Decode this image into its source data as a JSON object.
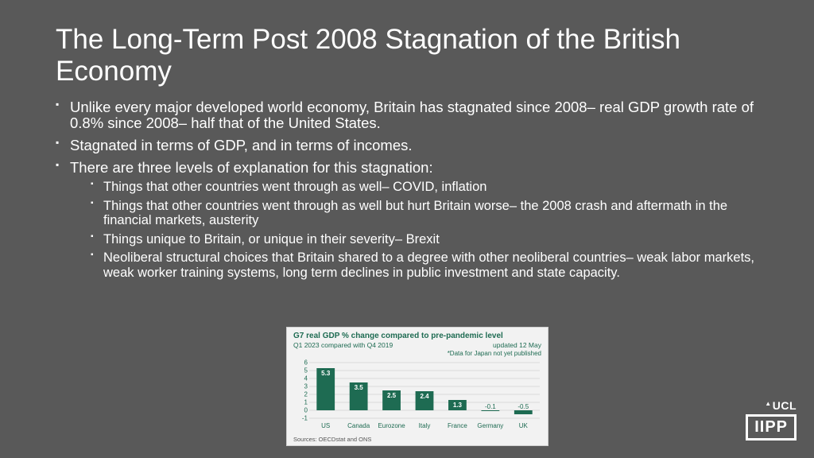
{
  "title": "The Long-Term Post 2008 Stagnation of the British Economy",
  "bullets": [
    "Unlike every major developed world economy, Britain has stagnated since 2008– real GDP growth rate of 0.8% since 2008– half that of the United States.",
    "Stagnated in terms of GDP, and in terms of incomes.",
    "There are three levels of explanation for this stagnation:"
  ],
  "sub_bullets": [
    "Things that other countries went through as well– COVID, inflation",
    "Things that other countries went through as well but hurt Britain worse– the 2008 crash and aftermath in the financial markets, austerity",
    "Things unique to Britain, or unique in their severity– Brexit",
    "Neoliberal structural choices that Britain shared to a degree with other neoliberal countries– weak labor markets, weak worker training systems, long term declines in public investment and state capacity."
  ],
  "chart": {
    "type": "bar",
    "title": "G7 real GDP % change compared to pre-pandemic level",
    "subtitle_left": "Q1 2023 compared with Q4 2019",
    "subtitle_right": "updated 12 May",
    "note": "*Data for Japan not yet published",
    "source": "Sources: OECDstat and ONS",
    "categories": [
      "US",
      "Canada",
      "Eurozone",
      "Italy",
      "France",
      "Germany",
      "UK"
    ],
    "values": [
      5.3,
      3.5,
      2.5,
      2.4,
      1.3,
      -0.1,
      -0.5
    ],
    "bar_color": "#1e6b52",
    "background_color": "#f2f2f2",
    "grid_color": "#d9d9d9",
    "text_color": "#1e6b52",
    "ylim": [
      -1,
      6
    ],
    "ytick_step": 1,
    "title_fontsize": 10,
    "label_fontsize": 8
  },
  "logo": {
    "top": "UCL",
    "bottom": "IIPP"
  }
}
